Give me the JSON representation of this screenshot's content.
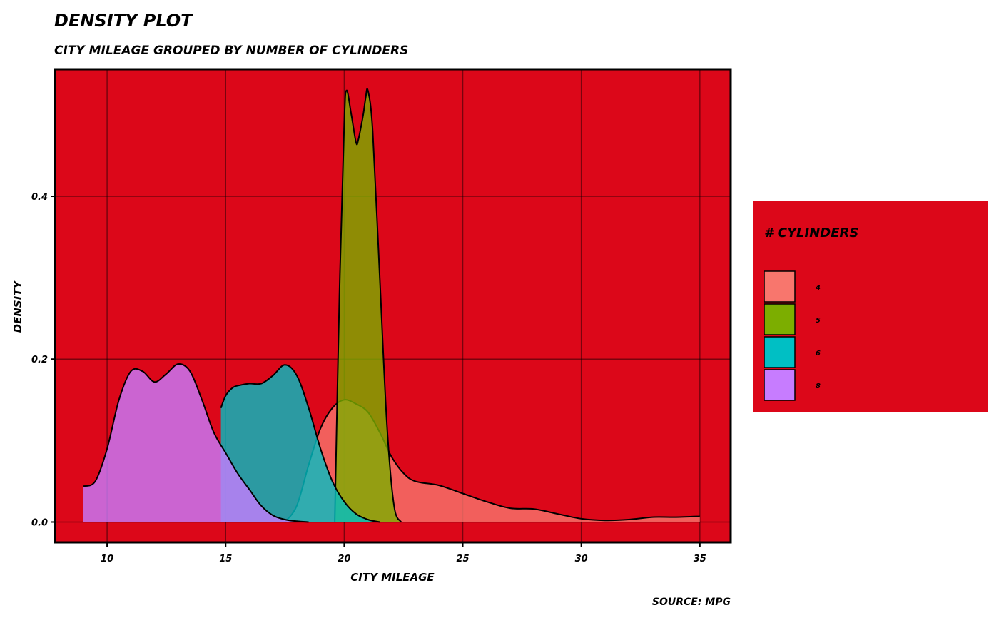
{
  "chart_data": {
    "type": "area",
    "title": "DENSITY PLOT",
    "subtitle": "CITY MILEAGE GROUPED BY NUMBER OF CYLINDERS",
    "xlabel": "CITY MILEAGE",
    "ylabel": "DENSITY",
    "caption": "SOURCE: MPG",
    "xlim": [
      7.8,
      36.3
    ],
    "ylim": [
      -0.025,
      0.556
    ],
    "x_ticks": [
      10,
      15,
      20,
      25,
      30,
      35
    ],
    "y_ticks": [
      0.0,
      0.2,
      0.4
    ],
    "y_tick_labels": [
      "0.0",
      "0.2",
      "0.4"
    ],
    "grid": true,
    "legend_position": "right",
    "legend_title": "# CYLINDERS",
    "background_color": "#DC0719",
    "series": [
      {
        "name": "4",
        "color": "#F8766D",
        "x": [
          17.5,
          18,
          18.5,
          19,
          19.5,
          20,
          20.5,
          21,
          21.5,
          22,
          22.5,
          23,
          24,
          25,
          26,
          27,
          28,
          29,
          30,
          31,
          32,
          33,
          34,
          35
        ],
        "values": [
          0.0,
          0.02,
          0.07,
          0.115,
          0.14,
          0.15,
          0.145,
          0.135,
          0.11,
          0.08,
          0.06,
          0.05,
          0.045,
          0.035,
          0.025,
          0.017,
          0.016,
          0.01,
          0.004,
          0.002,
          0.003,
          0.006,
          0.006,
          0.007
        ]
      },
      {
        "name": "5",
        "color": "#7CAE00",
        "x": [
          19.6,
          19.8,
          20.0,
          20.1,
          20.3,
          20.5,
          20.6,
          20.8,
          20.9,
          21.0,
          21.2,
          21.5,
          21.8,
          22.1,
          22.4
        ],
        "values": [
          0.0,
          0.28,
          0.49,
          0.53,
          0.5,
          0.466,
          0.47,
          0.5,
          0.52,
          0.53,
          0.48,
          0.3,
          0.12,
          0.02,
          0.0
        ]
      },
      {
        "name": "6",
        "color": "#00BFC4",
        "x": [
          14.8,
          15.0,
          15.3,
          15.6,
          16.0,
          16.5,
          17.0,
          17.5,
          18.0,
          18.5,
          19.0,
          19.5,
          20.0,
          20.5,
          21.0,
          21.5
        ],
        "values": [
          0.14,
          0.155,
          0.165,
          0.168,
          0.17,
          0.17,
          0.18,
          0.193,
          0.18,
          0.14,
          0.09,
          0.05,
          0.025,
          0.01,
          0.003,
          0.0
        ]
      },
      {
        "name": "8",
        "color": "#C77CFF",
        "x": [
          9,
          9.5,
          10,
          10.5,
          11,
          11.5,
          12,
          12.5,
          13,
          13.5,
          14,
          14.5,
          15,
          15.5,
          16,
          16.5,
          17,
          17.5,
          18,
          18.5
        ],
        "values": [
          0.044,
          0.05,
          0.09,
          0.15,
          0.185,
          0.185,
          0.172,
          0.182,
          0.194,
          0.185,
          0.15,
          0.11,
          0.085,
          0.06,
          0.04,
          0.02,
          0.008,
          0.003,
          0.001,
          0.0
        ]
      }
    ]
  }
}
